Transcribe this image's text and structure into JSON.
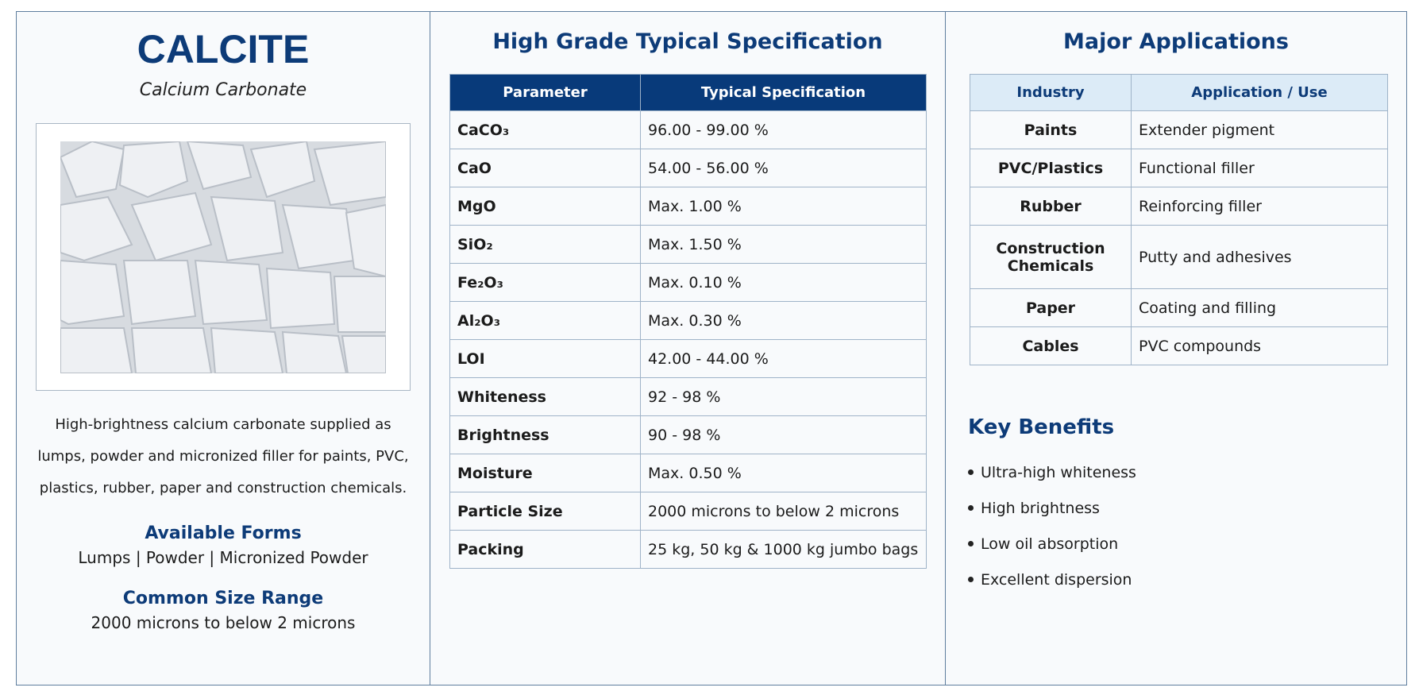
{
  "left": {
    "title": "CALCITE",
    "subtitle": "Calcium Carbonate",
    "description": "High-brightness calcium carbonate supplied as lumps, powder and micronized filler for paints, PVC, plastics, rubber, paper and construction chemicals.",
    "forms_heading": "Available Forms",
    "forms": "Lumps | Powder | Micronized Powder",
    "size_heading": "Common Size Range",
    "size": "2000 microns to below 2 microns"
  },
  "spec": {
    "heading": "High Grade Typical Specification",
    "header": [
      "Parameter",
      "Typical Specification"
    ],
    "rows": [
      [
        "CaCO₃",
        "96.00 - 99.00 %"
      ],
      [
        "CaO",
        "54.00 - 56.00 %"
      ],
      [
        "MgO",
        "Max. 1.00 %"
      ],
      [
        "SiO₂",
        "Max. 1.50 %"
      ],
      [
        "Fe₂O₃",
        "Max. 0.10 %"
      ],
      [
        "Al₂O₃",
        "Max. 0.30 %"
      ],
      [
        "LOI",
        "42.00 - 44.00 %"
      ],
      [
        "Whiteness",
        "92 - 98 %"
      ],
      [
        "Brightness",
        "90 - 98 %"
      ],
      [
        "Moisture",
        "Max. 0.50 %"
      ],
      [
        "Particle Size",
        "2000 microns to below 2 microns"
      ],
      [
        "Packing",
        "25 kg, 50 kg & 1000 kg jumbo bags"
      ]
    ]
  },
  "applications": {
    "heading": "Major Applications",
    "header": [
      "Industry",
      "Application / Use"
    ],
    "rows": [
      [
        "Paints",
        "Extender pigment"
      ],
      [
        "PVC/Plastics",
        "Functional filler"
      ],
      [
        "Rubber",
        "Reinforcing filler"
      ],
      [
        "Construction Chemicals",
        "Putty and adhesives"
      ],
      [
        "Paper",
        "Coating and filling"
      ],
      [
        "Cables",
        "PVC compounds"
      ]
    ]
  },
  "benefits": {
    "heading": "Key Benefits",
    "items": [
      "Ultra-high whiteness",
      "High brightness",
      "Low oil absorption",
      "Excellent dispersion"
    ]
  }
}
